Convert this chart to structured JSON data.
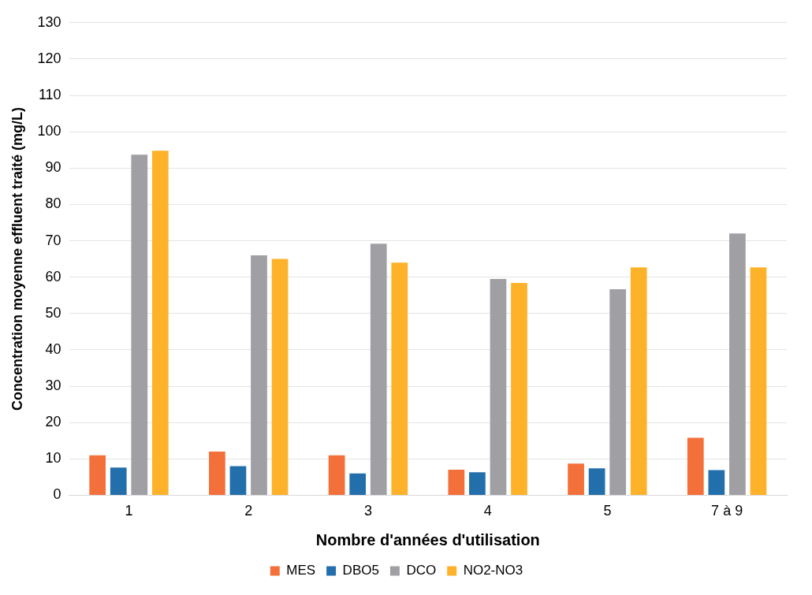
{
  "chart_data": {
    "type": "bar",
    "xlabel": "Nombre d'années d'utilisation",
    "ylabel": "Concentration moyenne effluent traité (mg/L)",
    "categories": [
      "1",
      "2",
      "3",
      "4",
      "5",
      "7 à 9"
    ],
    "series": [
      {
        "name": "MES",
        "color": "#f4703a",
        "values": [
          11,
          12,
          11,
          7,
          8.7,
          15.8
        ]
      },
      {
        "name": "DBO5",
        "color": "#236fac",
        "values": [
          7.6,
          8,
          6,
          6.3,
          7.4,
          6.9
        ]
      },
      {
        "name": "DCO",
        "color": "#a0a0a4",
        "values": [
          93.7,
          66,
          69.2,
          59.5,
          56.7,
          72
        ]
      },
      {
        "name": "NO2-NO3",
        "color": "#feb22a",
        "values": [
          94.8,
          65,
          64,
          58.4,
          62.7,
          62.7
        ]
      }
    ],
    "ylim": [
      0,
      130
    ],
    "yticks": [
      0,
      10,
      20,
      30,
      40,
      50,
      60,
      70,
      80,
      90,
      100,
      110,
      120,
      130
    ],
    "grid": "y",
    "legend": "bottom"
  }
}
